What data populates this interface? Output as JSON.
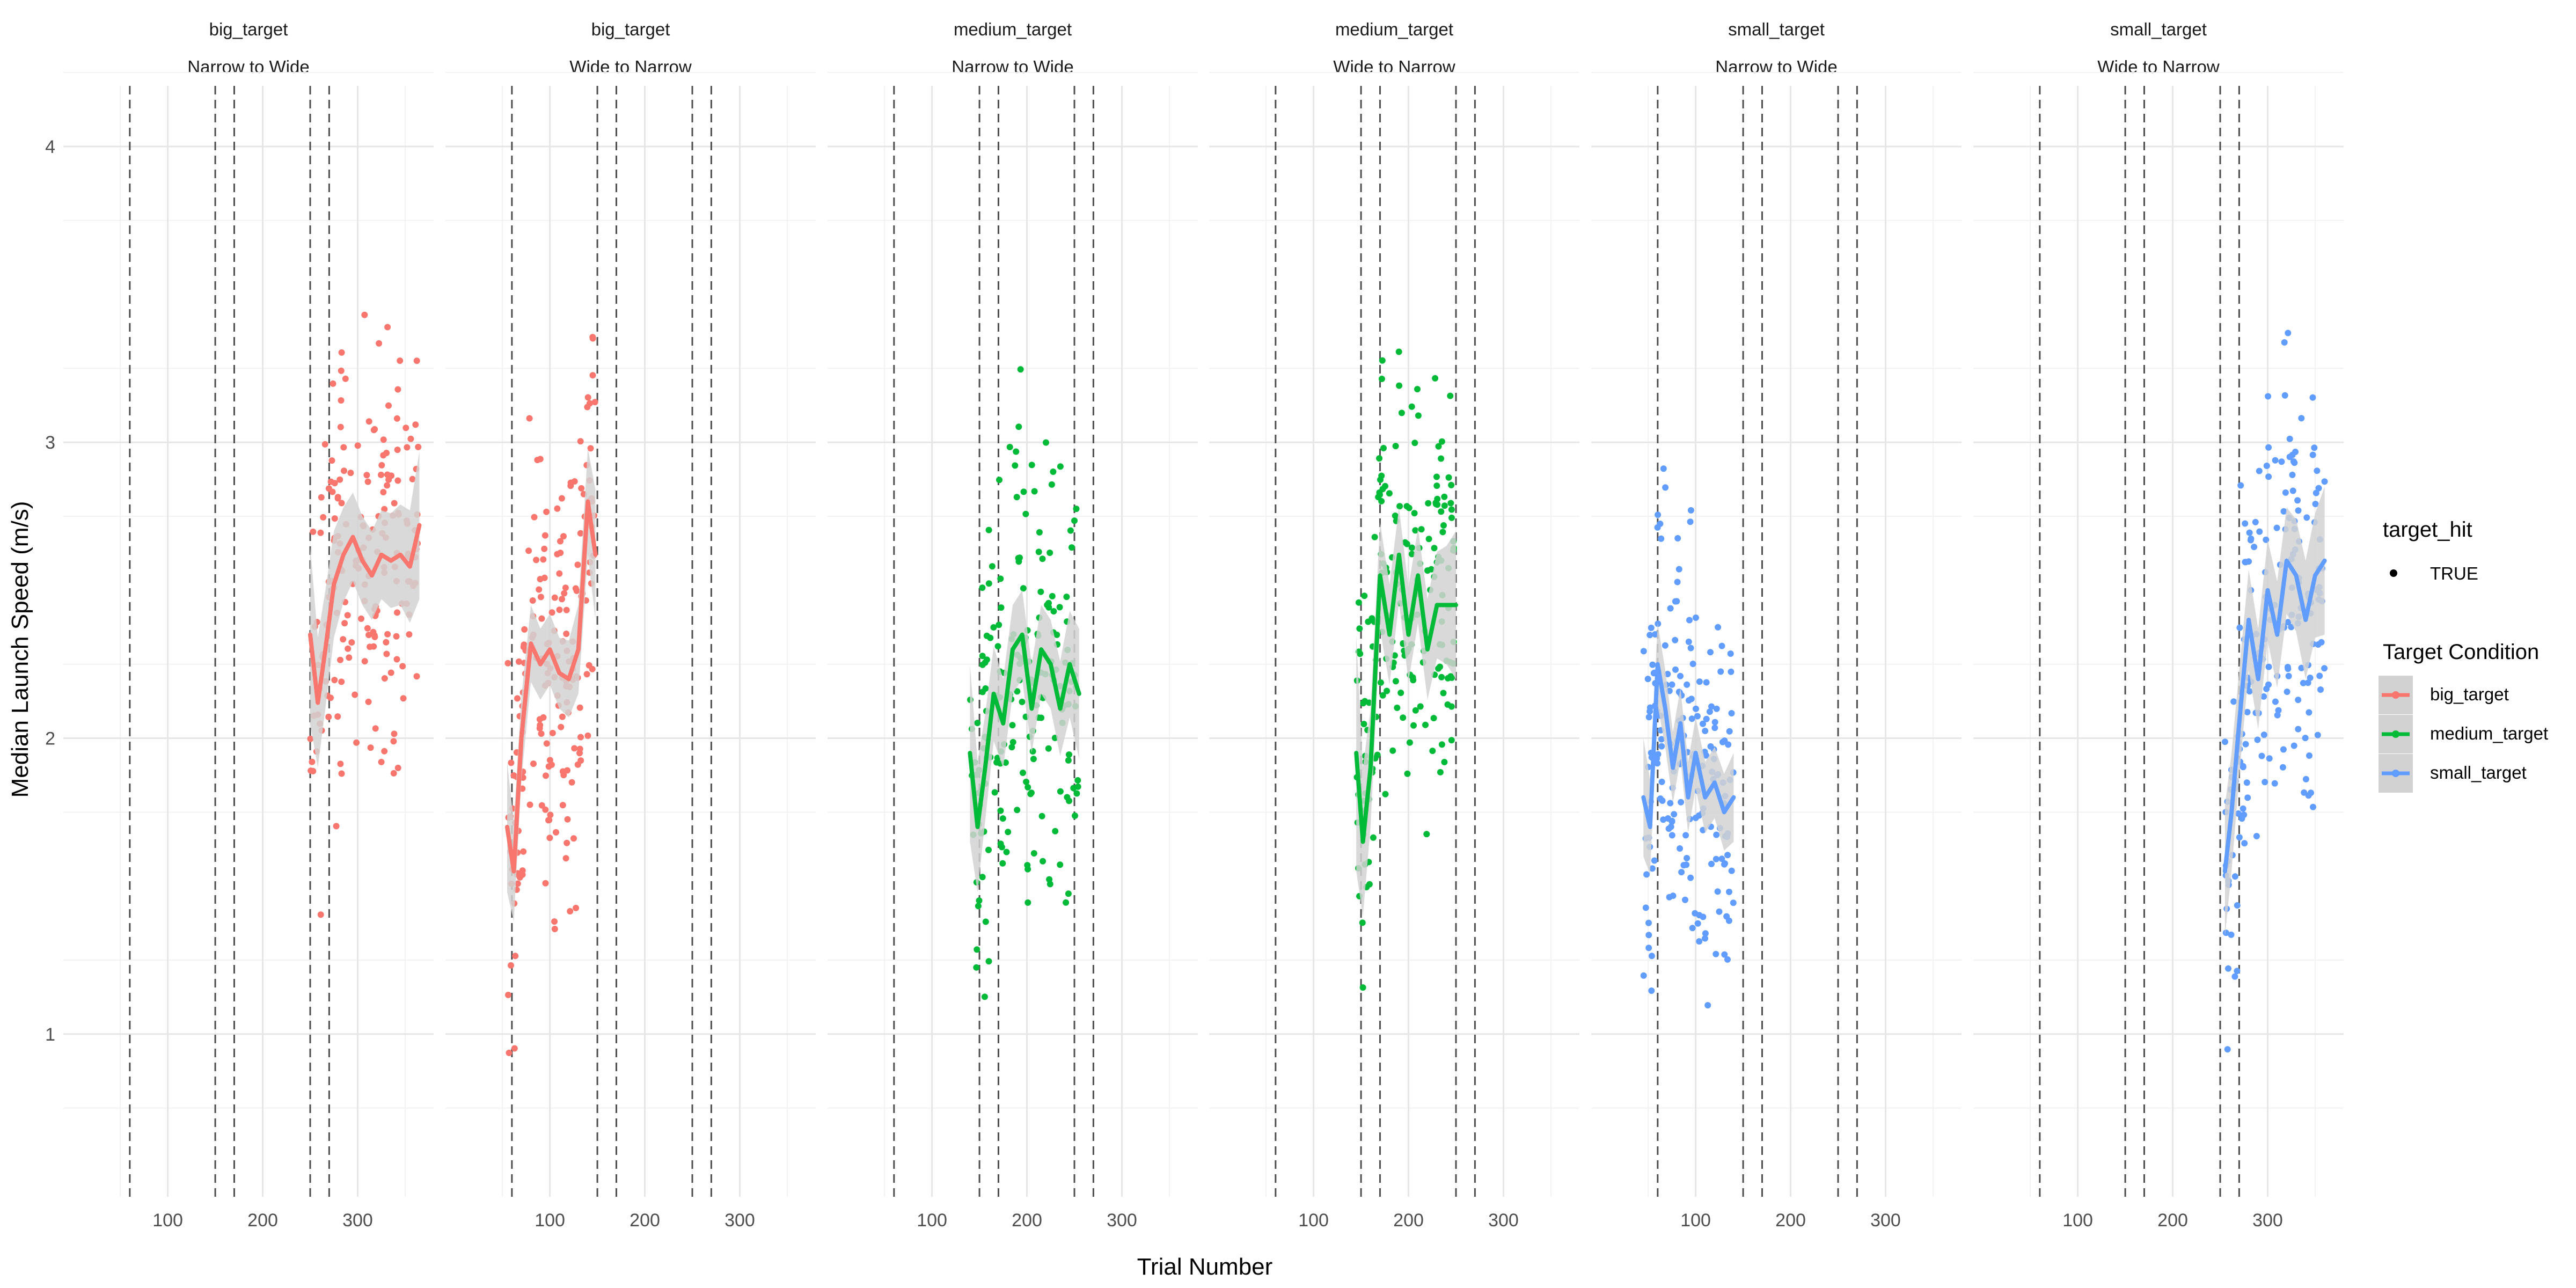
{
  "chart_data": {
    "type": "scatter",
    "title": "",
    "xlabel": "Trial Number",
    "ylabel": "Median Launch Speed (m/s)",
    "xlim": [
      -10,
      380
    ],
    "ylim": [
      0.45,
      4.35
    ],
    "x_ticks": [
      "100",
      "200",
      "300"
    ],
    "x_tick_values": [
      100,
      200,
      300
    ],
    "y_ticks": [
      "1",
      "2",
      "3",
      "4"
    ],
    "y_tick_values": [
      1,
      2,
      3,
      4
    ],
    "grid": true,
    "phase_boundaries": [
      60,
      150,
      170,
      250,
      270
    ],
    "legend": {
      "position": "right",
      "shape_title": "target_hit",
      "shape_entries": [
        "TRUE"
      ],
      "color_title": "Target Condition",
      "color_entries": [
        "big_target",
        "medium_target",
        "small_target"
      ]
    },
    "colors": {
      "big_target": "#F8766D",
      "medium_target": "#00BA38",
      "small_target": "#619CFF",
      "ribbon": "#d2d2d2",
      "vline": "#4d4d4d"
    },
    "panels": [
      {
        "row1": "big_target",
        "row2": "Narrow to Wide",
        "group": "big_target",
        "smooth_x": [
          250,
          258,
          266,
          275,
          285,
          295,
          305,
          315,
          325,
          335,
          345,
          355,
          365
        ],
        "smooth_y": [
          2.35,
          2.12,
          2.3,
          2.52,
          2.62,
          2.68,
          2.6,
          2.55,
          2.62,
          2.6,
          2.62,
          2.58,
          2.72
        ],
        "band": [
          0.3,
          0.22,
          0.2,
          0.18,
          0.16,
          0.15,
          0.15,
          0.15,
          0.15,
          0.16,
          0.17,
          0.19,
          0.25
        ]
      },
      {
        "row1": "big_target",
        "row2": "Wide to Narrow",
        "group": "big_target",
        "smooth_x": [
          55,
          62,
          70,
          80,
          90,
          100,
          110,
          120,
          130,
          140,
          148
        ],
        "smooth_y": [
          1.7,
          1.55,
          2.0,
          2.32,
          2.25,
          2.3,
          2.22,
          2.2,
          2.3,
          2.8,
          2.62
        ],
        "band": [
          0.22,
          0.17,
          0.14,
          0.13,
          0.12,
          0.12,
          0.12,
          0.13,
          0.15,
          0.18,
          0.22
        ]
      },
      {
        "row1": "medium_target",
        "row2": "Narrow to Wide",
        "group": "medium_target",
        "smooth_x": [
          140,
          148,
          156,
          165,
          175,
          185,
          195,
          205,
          215,
          225,
          235,
          245,
          255
        ],
        "smooth_y": [
          1.95,
          1.7,
          1.9,
          2.15,
          2.05,
          2.3,
          2.35,
          2.1,
          2.3,
          2.25,
          2.1,
          2.25,
          2.15
        ],
        "band": [
          0.3,
          0.22,
          0.18,
          0.16,
          0.15,
          0.15,
          0.15,
          0.15,
          0.15,
          0.15,
          0.16,
          0.18,
          0.22
        ]
      },
      {
        "row1": "medium_target",
        "row2": "Wide to Narrow",
        "group": "medium_target",
        "smooth_x": [
          145,
          152,
          160,
          170,
          180,
          190,
          200,
          210,
          220,
          230,
          240,
          250
        ],
        "smooth_y": [
          1.95,
          1.65,
          1.9,
          2.55,
          2.35,
          2.62,
          2.35,
          2.55,
          2.3,
          2.45,
          2.45,
          2.45
        ],
        "band": [
          0.4,
          0.25,
          0.2,
          0.18,
          0.17,
          0.16,
          0.16,
          0.16,
          0.17,
          0.18,
          0.2,
          0.25
        ]
      },
      {
        "row1": "small_target",
        "row2": "Narrow to Wide",
        "group": "small_target",
        "smooth_x": [
          45,
          52,
          60,
          68,
          76,
          84,
          92,
          100,
          110,
          120,
          130,
          140
        ],
        "smooth_y": [
          1.8,
          1.7,
          2.25,
          2.1,
          1.9,
          2.05,
          1.8,
          1.95,
          1.8,
          1.85,
          1.75,
          1.8
        ],
        "band": [
          0.2,
          0.16,
          0.14,
          0.13,
          0.12,
          0.12,
          0.12,
          0.12,
          0.12,
          0.12,
          0.13,
          0.15
        ]
      },
      {
        "row1": "small_target",
        "row2": "Wide to Narrow",
        "group": "small_target",
        "smooth_x": [
          255,
          262,
          270,
          280,
          290,
          300,
          310,
          320,
          330,
          340,
          350,
          360
        ],
        "smooth_y": [
          1.55,
          1.75,
          2.05,
          2.4,
          2.2,
          2.5,
          2.35,
          2.6,
          2.55,
          2.4,
          2.55,
          2.6
        ],
        "band": [
          0.22,
          0.2,
          0.18,
          0.17,
          0.17,
          0.17,
          0.18,
          0.18,
          0.19,
          0.2,
          0.21,
          0.25
        ]
      }
    ]
  }
}
